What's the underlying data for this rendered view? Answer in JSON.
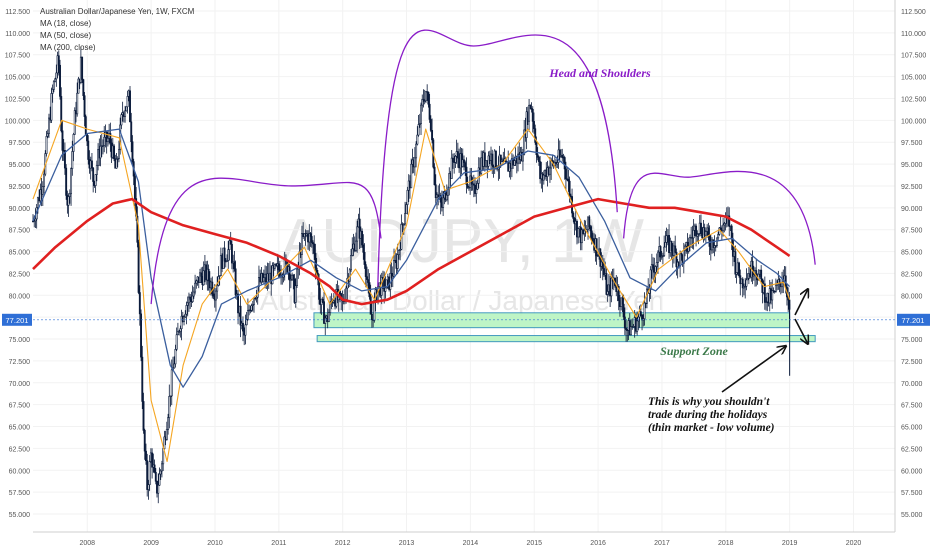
{
  "header": {
    "symbol_line": "Australian Dollar/Japanese Yen, 1W, FXCM",
    "ma_lines": [
      "MA (18, close)",
      "MA (50, close)",
      "MA (200, close)"
    ]
  },
  "watermark": {
    "ticker": "AUDJPY, 1W",
    "name": "Australian Dollar / Japanese Yen"
  },
  "price_label": "77.201",
  "annotations": {
    "pattern": "Head and Shoulders",
    "support": "Support Zone",
    "note_lines": [
      "This is why you shouldn't",
      "trade during the holidays",
      "(thin market - low volume)"
    ]
  },
  "colors": {
    "candle": "#0a1a3a",
    "ma18": "#f5a623",
    "ma50": "#3b5f9e",
    "ma200": "#e02020",
    "arc": "#8a1cc8",
    "zone_fill": "#b8f5c0",
    "zone_stroke": "#2e8fb8",
    "price_tag": "#2f6fd6"
  },
  "chart_data": {
    "type": "candlestick",
    "title": "Australian Dollar/Japanese Yen, 1W, FXCM",
    "x_ticks": [
      "2008",
      "2009",
      "2010",
      "2011",
      "2012",
      "2013",
      "2014",
      "2015",
      "2016",
      "2017",
      "2018",
      "2019",
      "2020"
    ],
    "y_ticks": [
      "112.500",
      "110.000",
      "107.500",
      "105.000",
      "102.500",
      "100.000",
      "97.500",
      "95.000",
      "92.500",
      "90.000",
      "87.500",
      "85.000",
      "82.500",
      "80.000",
      "77.500",
      "75.000",
      "72.500",
      "70.000",
      "67.500",
      "65.000",
      "62.500",
      "60.000",
      "57.500",
      "55.000"
    ],
    "ylim": [
      54,
      113
    ],
    "xlim": [
      2007.15,
      2020.65
    ],
    "last_price": 77.201,
    "price_path": [
      [
        2007.15,
        88.5
      ],
      [
        2007.3,
        93.0
      ],
      [
        2007.45,
        103.0
      ],
      [
        2007.55,
        107.0
      ],
      [
        2007.6,
        98.0
      ],
      [
        2007.7,
        90.0
      ],
      [
        2007.8,
        100.0
      ],
      [
        2007.9,
        106.5
      ],
      [
        2008.0,
        97.0
      ],
      [
        2008.1,
        93.0
      ],
      [
        2008.2,
        97.0
      ],
      [
        2008.35,
        98.0
      ],
      [
        2008.45,
        94.0
      ],
      [
        2008.55,
        101.0
      ],
      [
        2008.65,
        102.5
      ],
      [
        2008.72,
        95.0
      ],
      [
        2008.78,
        86.0
      ],
      [
        2008.84,
        74.0
      ],
      [
        2008.88,
        64.0
      ],
      [
        2008.94,
        58.0
      ],
      [
        2009.0,
        62.0
      ],
      [
        2009.08,
        57.5
      ],
      [
        2009.15,
        60.0
      ],
      [
        2009.25,
        66.0
      ],
      [
        2009.35,
        72.0
      ],
      [
        2009.45,
        77.0
      ],
      [
        2009.55,
        79.0
      ],
      [
        2009.65,
        80.0
      ],
      [
        2009.75,
        82.0
      ],
      [
        2009.85,
        82.5
      ],
      [
        2010.0,
        80.5
      ],
      [
        2010.1,
        84.0
      ],
      [
        2010.25,
        85.5
      ],
      [
        2010.35,
        79.0
      ],
      [
        2010.45,
        75.0
      ],
      [
        2010.55,
        79.0
      ],
      [
        2010.7,
        81.5
      ],
      [
        2010.85,
        82.0
      ],
      [
        2011.0,
        83.0
      ],
      [
        2011.15,
        83.5
      ],
      [
        2011.25,
        80.0
      ],
      [
        2011.35,
        86.0
      ],
      [
        2011.45,
        87.0
      ],
      [
        2011.55,
        85.5
      ],
      [
        2011.65,
        79.0
      ],
      [
        2011.75,
        77.0
      ],
      [
        2011.85,
        80.0
      ],
      [
        2012.0,
        79.0
      ],
      [
        2012.15,
        85.0
      ],
      [
        2012.25,
        88.0
      ],
      [
        2012.35,
        84.0
      ],
      [
        2012.45,
        77.0
      ],
      [
        2012.55,
        81.0
      ],
      [
        2012.7,
        81.0
      ],
      [
        2012.85,
        84.0
      ],
      [
        2013.0,
        91.0
      ],
      [
        2013.15,
        97.0
      ],
      [
        2013.25,
        102.0
      ],
      [
        2013.3,
        103.5
      ],
      [
        2013.38,
        100.0
      ],
      [
        2013.45,
        92.0
      ],
      [
        2013.55,
        90.0
      ],
      [
        2013.65,
        93.0
      ],
      [
        2013.75,
        96.0
      ],
      [
        2013.85,
        95.5
      ],
      [
        2013.95,
        93.5
      ],
      [
        2014.05,
        91.5
      ],
      [
        2014.15,
        95.0
      ],
      [
        2014.3,
        96.0
      ],
      [
        2014.45,
        95.0
      ],
      [
        2014.55,
        94.5
      ],
      [
        2014.7,
        95.5
      ],
      [
        2014.8,
        96.0
      ],
      [
        2014.9,
        101.0
      ],
      [
        2014.95,
        102.0
      ],
      [
        2015.0,
        99.0
      ],
      [
        2015.1,
        93.0
      ],
      [
        2015.2,
        94.5
      ],
      [
        2015.3,
        95.0
      ],
      [
        2015.45,
        96.0
      ],
      [
        2015.55,
        92.0
      ],
      [
        2015.65,
        88.0
      ],
      [
        2015.75,
        86.5
      ],
      [
        2015.85,
        88.0
      ],
      [
        2015.95,
        86.0
      ],
      [
        2016.05,
        84.0
      ],
      [
        2016.15,
        80.0
      ],
      [
        2016.25,
        82.0
      ],
      [
        2016.35,
        79.5
      ],
      [
        2016.45,
        76.0
      ],
      [
        2016.55,
        76.5
      ],
      [
        2016.65,
        77.5
      ],
      [
        2016.75,
        79.0
      ],
      [
        2016.85,
        83.0
      ],
      [
        2016.95,
        84.5
      ],
      [
        2017.05,
        86.0
      ],
      [
        2017.15,
        85.5
      ],
      [
        2017.25,
        84.0
      ],
      [
        2017.35,
        84.5
      ],
      [
        2017.45,
        86.5
      ],
      [
        2017.55,
        88.0
      ],
      [
        2017.65,
        87.5
      ],
      [
        2017.75,
        86.0
      ],
      [
        2017.85,
        86.5
      ],
      [
        2017.95,
        88.0
      ],
      [
        2018.05,
        88.5
      ],
      [
        2018.15,
        83.5
      ],
      [
        2018.25,
        81.5
      ],
      [
        2018.35,
        82.5
      ],
      [
        2018.45,
        83.5
      ],
      [
        2018.55,
        81.5
      ],
      [
        2018.65,
        79.5
      ],
      [
        2018.75,
        80.0
      ],
      [
        2018.85,
        81.5
      ],
      [
        2018.92,
        82.5
      ],
      [
        2018.97,
        80.0
      ],
      [
        2019.0,
        77.2
      ]
    ],
    "ma200_path": [
      [
        2007.15,
        83.0
      ],
      [
        2007.5,
        85.5
      ],
      [
        2008.0,
        88.5
      ],
      [
        2008.4,
        90.5
      ],
      [
        2008.7,
        91.0
      ],
      [
        2009.0,
        89.5
      ],
      [
        2009.5,
        88.0
      ],
      [
        2010.0,
        87.0
      ],
      [
        2010.5,
        86.0
      ],
      [
        2011.0,
        84.5
      ],
      [
        2011.5,
        82.5
      ],
      [
        2011.8,
        81.0
      ],
      [
        2012.0,
        79.5
      ],
      [
        2012.3,
        79.0
      ],
      [
        2012.7,
        79.5
      ],
      [
        2013.0,
        80.5
      ],
      [
        2013.5,
        83.0
      ],
      [
        2014.0,
        85.0
      ],
      [
        2014.5,
        87.0
      ],
      [
        2015.0,
        89.0
      ],
      [
        2015.5,
        90.0
      ],
      [
        2016.0,
        91.0
      ],
      [
        2016.4,
        90.5
      ],
      [
        2016.8,
        90.0
      ],
      [
        2017.2,
        90.0
      ],
      [
        2017.6,
        89.5
      ],
      [
        2018.0,
        89.0
      ],
      [
        2018.4,
        87.5
      ],
      [
        2018.8,
        85.5
      ],
      [
        2019.0,
        84.5
      ]
    ],
    "ma50_path": [
      [
        2007.15,
        88.5
      ],
      [
        2007.6,
        96.0
      ],
      [
        2008.0,
        98.5
      ],
      [
        2008.5,
        99.0
      ],
      [
        2008.8,
        93.0
      ],
      [
        2009.0,
        82.0
      ],
      [
        2009.3,
        72.0
      ],
      [
        2009.5,
        69.5
      ],
      [
        2009.8,
        73.0
      ],
      [
        2010.1,
        79.0
      ],
      [
        2010.5,
        80.5
      ],
      [
        2011.0,
        82.0
      ],
      [
        2011.5,
        84.0
      ],
      [
        2011.9,
        82.0
      ],
      [
        2012.3,
        80.5
      ],
      [
        2012.7,
        81.0
      ],
      [
        2013.0,
        84.0
      ],
      [
        2013.5,
        91.0
      ],
      [
        2013.9,
        94.0
      ],
      [
        2014.4,
        94.5
      ],
      [
        2014.9,
        96.5
      ],
      [
        2015.3,
        96.0
      ],
      [
        2015.7,
        93.5
      ],
      [
        2016.1,
        88.5
      ],
      [
        2016.5,
        82.0
      ],
      [
        2016.9,
        80.5
      ],
      [
        2017.3,
        83.5
      ],
      [
        2017.7,
        86.0
      ],
      [
        2018.1,
        86.5
      ],
      [
        2018.5,
        84.0
      ],
      [
        2018.8,
        82.5
      ],
      [
        2019.0,
        81.0
      ]
    ],
    "ma18_path": [
      [
        2007.15,
        91.0
      ],
      [
        2007.6,
        100.0
      ],
      [
        2008.0,
        99.0
      ],
      [
        2008.5,
        98.0
      ],
      [
        2008.8,
        88.0
      ],
      [
        2009.0,
        68.0
      ],
      [
        2009.25,
        61.0
      ],
      [
        2009.5,
        72.0
      ],
      [
        2009.8,
        79.0
      ],
      [
        2010.2,
        83.0
      ],
      [
        2010.5,
        79.0
      ],
      [
        2011.0,
        82.5
      ],
      [
        2011.4,
        85.5
      ],
      [
        2011.8,
        79.0
      ],
      [
        2012.2,
        83.0
      ],
      [
        2012.5,
        79.5
      ],
      [
        2013.0,
        88.0
      ],
      [
        2013.3,
        99.0
      ],
      [
        2013.6,
        92.0
      ],
      [
        2014.0,
        93.0
      ],
      [
        2014.5,
        95.0
      ],
      [
        2014.9,
        99.0
      ],
      [
        2015.3,
        95.0
      ],
      [
        2015.8,
        87.5
      ],
      [
        2016.3,
        81.0
      ],
      [
        2016.6,
        77.5
      ],
      [
        2016.95,
        83.0
      ],
      [
        2017.4,
        85.5
      ],
      [
        2017.9,
        87.5
      ],
      [
        2018.2,
        85.0
      ],
      [
        2018.6,
        81.0
      ],
      [
        2018.9,
        81.5
      ],
      [
        2019.0,
        79.5
      ]
    ],
    "arcs": [
      {
        "x0": 2009.0,
        "y0": 79.0,
        "xpeak": 2011.2,
        "ypeak": 92.5,
        "x1": 2012.6,
        "y1": 86.5
      },
      {
        "x0": 2012.55,
        "y0": 81.0,
        "xpeak": 2014.05,
        "ypeak": 108.5,
        "x1": 2016.3,
        "y1": 89.5
      },
      {
        "x0": 2016.4,
        "y0": 86.5,
        "xpeak": 2017.4,
        "ypeak": 93.5,
        "x1": 2019.4,
        "y1": 83.5
      }
    ],
    "zones": [
      {
        "x0": 2011.55,
        "x1": 2019.0,
        "y0": 76.3,
        "y1": 78.0
      },
      {
        "x0": 2011.6,
        "x1": 2019.4,
        "y0": 74.7,
        "y1": 75.4
      }
    ]
  }
}
